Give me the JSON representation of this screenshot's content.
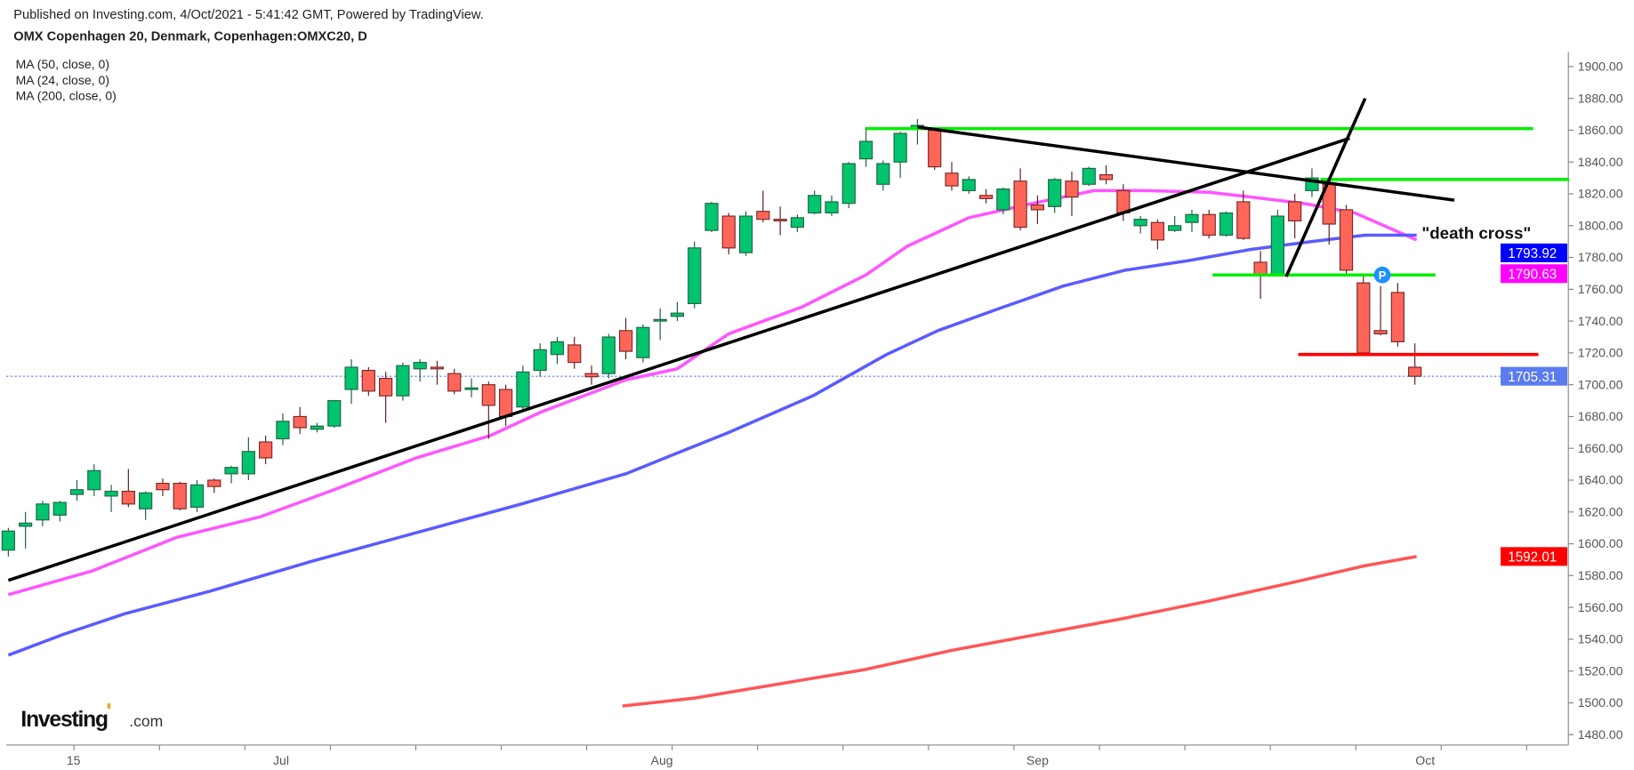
{
  "header": {
    "published": "Published on Investing.com, 4/Oct/2021 - 5:41:42 GMT, Powered by TradingView.",
    "symbol_title": "OMX Copenhagen 20, Denmark, Copenhagen:OMXC20, D"
  },
  "legend": [
    {
      "label": "MA (50, close, 0)",
      "color": "#5b5bff"
    },
    {
      "label": "MA (24, close, 0)",
      "color": "#ff55ff"
    },
    {
      "label": "MA (200, close, 0)",
      "color": "#ff5555"
    }
  ],
  "logo": {
    "text": "Investing",
    "suffix": ".com"
  },
  "chart_data": {
    "type": "candlestick",
    "title": "OMX Copenhagen 20, Denmark, Copenhagen:OMXC20, D",
    "ylim": [
      1470,
      1910
    ],
    "y_ticks": [
      1900,
      1880,
      1860,
      1840,
      1820,
      1800,
      1780,
      1760,
      1740,
      1720,
      1700,
      1680,
      1660,
      1640,
      1620,
      1600,
      1580,
      1560,
      1540,
      1520,
      1500,
      1480
    ],
    "x_ticks": [
      {
        "label": "15",
        "index": 3.8
      },
      {
        "label": "Jul",
        "index": 15.9
      },
      {
        "label": "Aug",
        "index": 38.1
      },
      {
        "label": "Sep",
        "index": 60
      },
      {
        "label": "Oct",
        "index": 82.6
      }
    ],
    "candles_ohlc": [
      [
        1596,
        1610,
        1592,
        1608
      ],
      [
        1611,
        1620,
        1597,
        1613
      ],
      [
        1615,
        1627,
        1611,
        1625
      ],
      [
        1618,
        1627,
        1614,
        1626
      ],
      [
        1631,
        1640,
        1627,
        1634
      ],
      [
        1634,
        1650,
        1630,
        1646
      ],
      [
        1630,
        1637,
        1620,
        1633
      ],
      [
        1633,
        1647,
        1623,
        1625
      ],
      [
        1622,
        1633,
        1615,
        1632
      ],
      [
        1638,
        1641,
        1630,
        1634
      ],
      [
        1638,
        1639,
        1621,
        1622
      ],
      [
        1623,
        1640,
        1620,
        1637
      ],
      [
        1640,
        1641,
        1632,
        1636
      ],
      [
        1644,
        1649,
        1638,
        1648
      ],
      [
        1644,
        1667,
        1640,
        1658
      ],
      [
        1664,
        1668,
        1650,
        1654
      ],
      [
        1666,
        1682,
        1662,
        1677
      ],
      [
        1680,
        1686,
        1669,
        1673
      ],
      [
        1672,
        1676,
        1670,
        1674
      ],
      [
        1674,
        1690,
        1673,
        1690
      ],
      [
        1697,
        1716,
        1688,
        1711
      ],
      [
        1709,
        1711,
        1693,
        1696
      ],
      [
        1704,
        1708,
        1676,
        1693
      ],
      [
        1693,
        1714,
        1690,
        1712
      ],
      [
        1710,
        1716,
        1702,
        1714
      ],
      [
        1711,
        1715,
        1700,
        1710
      ],
      [
        1707,
        1710,
        1694,
        1696
      ],
      [
        1697,
        1704,
        1692,
        1698
      ],
      [
        1700,
        1702,
        1666,
        1687
      ],
      [
        1697,
        1700,
        1674,
        1680
      ],
      [
        1686,
        1712,
        1684,
        1708
      ],
      [
        1709,
        1726,
        1705,
        1722
      ],
      [
        1719,
        1730,
        1713,
        1727
      ],
      [
        1725,
        1730,
        1710,
        1714
      ],
      [
        1707,
        1712,
        1700,
        1705
      ],
      [
        1707,
        1732,
        1704,
        1730
      ],
      [
        1734,
        1742,
        1716,
        1721
      ],
      [
        1717,
        1738,
        1714,
        1736
      ],
      [
        1740,
        1748,
        1728,
        1741
      ],
      [
        1743,
        1752,
        1740,
        1745
      ],
      [
        1751,
        1790,
        1748,
        1786
      ],
      [
        1797,
        1815,
        1796,
        1814
      ],
      [
        1806,
        1808,
        1782,
        1786
      ],
      [
        1783,
        1809,
        1781,
        1806
      ],
      [
        1809,
        1822,
        1802,
        1804
      ],
      [
        1804,
        1812,
        1794,
        1803
      ],
      [
        1799,
        1807,
        1796,
        1805
      ],
      [
        1808,
        1822,
        1807,
        1819
      ],
      [
        1808,
        1819,
        1806,
        1815
      ],
      [
        1814,
        1840,
        1811,
        1839
      ],
      [
        1842,
        1862,
        1837,
        1853
      ],
      [
        1826,
        1841,
        1822,
        1839
      ],
      [
        1840,
        1859,
        1830,
        1858
      ],
      [
        1861,
        1867,
        1851,
        1863
      ],
      [
        1860,
        1861,
        1835,
        1837
      ],
      [
        1833,
        1840,
        1822,
        1825
      ],
      [
        1822,
        1831,
        1820,
        1829
      ],
      [
        1819,
        1823,
        1814,
        1817
      ],
      [
        1810,
        1824,
        1807,
        1823
      ],
      [
        1828,
        1836,
        1797,
        1799
      ],
      [
        1813,
        1819,
        1801,
        1810
      ],
      [
        1812,
        1830,
        1808,
        1829
      ],
      [
        1828,
        1834,
        1806,
        1818
      ],
      [
        1826,
        1837,
        1825,
        1836
      ],
      [
        1832,
        1838,
        1826,
        1829
      ],
      [
        1822,
        1826,
        1803,
        1808
      ],
      [
        1800,
        1806,
        1795,
        1804
      ],
      [
        1802,
        1804,
        1785,
        1791
      ],
      [
        1797,
        1806,
        1796,
        1800
      ],
      [
        1802,
        1810,
        1796,
        1807
      ],
      [
        1807,
        1810,
        1792,
        1794
      ],
      [
        1794,
        1809,
        1793,
        1808
      ],
      [
        1815,
        1822,
        1791,
        1792
      ],
      [
        1777,
        1784,
        1754,
        1769
      ],
      [
        1769,
        1810,
        1769,
        1806
      ],
      [
        1815,
        1820,
        1792,
        1803
      ],
      [
        1822,
        1836,
        1818,
        1830
      ],
      [
        1826,
        1828,
        1788,
        1801
      ],
      [
        1810,
        1813,
        1770,
        1772
      ],
      [
        1764,
        1768,
        1718,
        1720
      ],
      [
        1734,
        1762,
        1731,
        1732
      ],
      [
        1758,
        1764,
        1724,
        1727
      ],
      [
        1711,
        1726,
        1700,
        1705.31
      ]
    ],
    "series": [
      {
        "name": "MA (24, close, 0)",
        "color": "#ff55ff",
        "last": "1790.63",
        "points": [
          [
            0,
            1568
          ],
          [
            4.9,
            1583
          ],
          [
            9.8,
            1604
          ],
          [
            14.7,
            1617
          ],
          [
            19,
            1634
          ],
          [
            23.8,
            1654
          ],
          [
            28.1,
            1668
          ],
          [
            31.1,
            1683
          ],
          [
            36,
            1703
          ],
          [
            39,
            1710
          ],
          [
            42,
            1732
          ],
          [
            46.3,
            1749
          ],
          [
            50,
            1769
          ],
          [
            52.4,
            1787
          ],
          [
            56,
            1805
          ],
          [
            59.7,
            1814
          ],
          [
            63.3,
            1822
          ],
          [
            66.3,
            1822
          ],
          [
            70,
            1821
          ],
          [
            72.4,
            1818
          ],
          [
            75.5,
            1814
          ],
          [
            78.5,
            1808
          ],
          [
            82.1,
            1791
          ]
        ]
      },
      {
        "name": "MA (50, close, 0)",
        "color": "#5b5bff",
        "last": "1793.92",
        "points": [
          [
            0,
            1530
          ],
          [
            3.2,
            1543
          ],
          [
            6.8,
            1556
          ],
          [
            11.7,
            1570
          ],
          [
            17.7,
            1589
          ],
          [
            23.8,
            1607
          ],
          [
            29.9,
            1625
          ],
          [
            36,
            1644
          ],
          [
            39,
            1657
          ],
          [
            42,
            1670
          ],
          [
            46.9,
            1693
          ],
          [
            51.2,
            1719
          ],
          [
            54.2,
            1734
          ],
          [
            57.8,
            1748
          ],
          [
            61.5,
            1762
          ],
          [
            65.1,
            1772
          ],
          [
            68.8,
            1778
          ],
          [
            72.4,
            1785
          ],
          [
            76,
            1790
          ],
          [
            79.1,
            1794
          ],
          [
            82.1,
            1794
          ]
        ]
      },
      {
        "name": "MA (200, close, 0)",
        "color": "#ff5555",
        "last": "1592.01",
        "points": [
          [
            35.8,
            1498
          ],
          [
            40,
            1503
          ],
          [
            45,
            1512
          ],
          [
            50,
            1521
          ],
          [
            55,
            1533
          ],
          [
            60,
            1543
          ],
          [
            65,
            1553
          ],
          [
            70,
            1564
          ],
          [
            75,
            1576
          ],
          [
            79,
            1586
          ],
          [
            82.1,
            1592
          ]
        ]
      }
    ],
    "last_price": "1705.31",
    "annotations": {
      "trendlines_black": [
        [
          [
            0,
            1577
          ],
          [
            78.2,
            1855
          ]
        ],
        [
          [
            74.5,
            1768
          ],
          [
            79.1,
            1880
          ]
        ],
        [
          [
            53,
            1862
          ],
          [
            84.3,
            1816
          ]
        ]
      ],
      "levels_green": [
        [
          50,
          88.9,
          1861
        ],
        [
          76.5,
          91,
          1829
        ],
        [
          70.2,
          83.2,
          1769
        ]
      ],
      "level_red": [
        75.2,
        89.2,
        1719
      ],
      "marker": {
        "text": "P",
        "index": 80.1,
        "price": 1769
      },
      "note": {
        "text": "\"death cross\"",
        "index": 82.4,
        "price": 1795
      }
    }
  }
}
